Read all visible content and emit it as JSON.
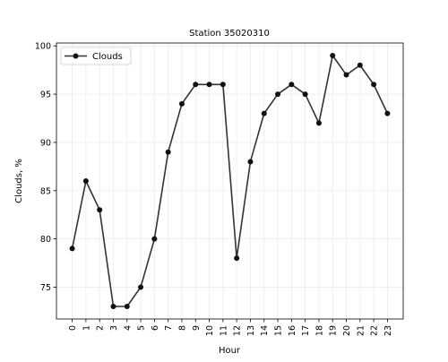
{
  "chart_data": {
    "type": "line",
    "title": "Station 35020310",
    "xlabel": "Hour",
    "ylabel": "Clouds, %",
    "x": [
      0,
      1,
      2,
      3,
      4,
      5,
      6,
      7,
      8,
      9,
      10,
      11,
      12,
      13,
      14,
      15,
      16,
      17,
      18,
      19,
      20,
      21,
      22,
      23
    ],
    "x_tick_labels": [
      "0",
      "1",
      "2",
      "3",
      "4",
      "5",
      "6",
      "7",
      "8",
      "9",
      "10",
      "11",
      "12",
      "13",
      "14",
      "15",
      "16",
      "17",
      "18",
      "19",
      "20",
      "21",
      "22",
      "23"
    ],
    "y_ticks": [
      75,
      80,
      85,
      90,
      95,
      100
    ],
    "y_tick_labels": [
      "75",
      "80",
      "85",
      "90",
      "95",
      "100"
    ],
    "xlim": [
      -1.15,
      24.15
    ],
    "ylim": [
      71.7,
      100.3
    ],
    "grid": true,
    "legend_position": "upper-left",
    "series": [
      {
        "name": "Clouds",
        "color": "#333333",
        "marker": "circle",
        "values": [
          79,
          86,
          83,
          73,
          73,
          75,
          80,
          89,
          94,
          96,
          96,
          96,
          78,
          88,
          93,
          95,
          96,
          95,
          92,
          99,
          97,
          98,
          96,
          93
        ]
      }
    ]
  }
}
